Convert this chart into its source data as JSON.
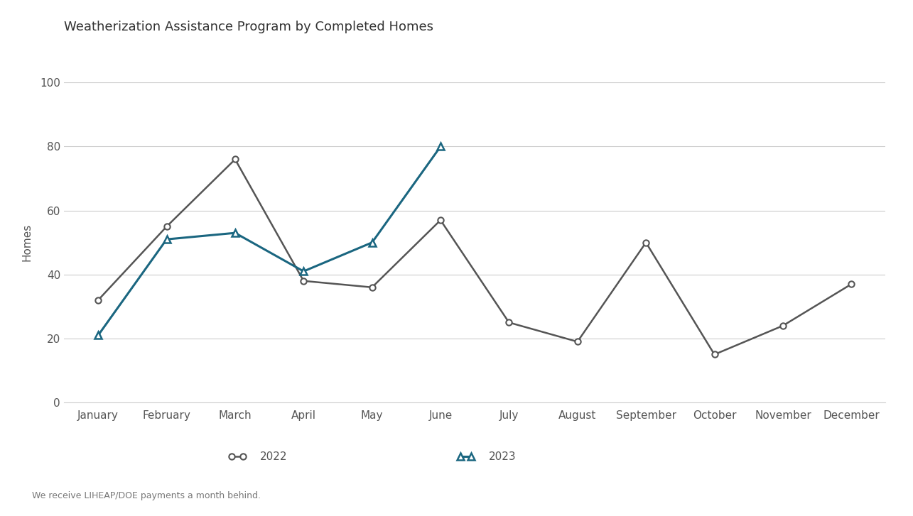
{
  "title": "Weatherization Assistance Program by Completed Homes",
  "ylabel": "Homes",
  "footnote": "We receive LIHEAP/DOE payments a month behind.",
  "months": [
    "January",
    "February",
    "March",
    "April",
    "May",
    "June",
    "July",
    "August",
    "September",
    "October",
    "November",
    "December"
  ],
  "series_2022": [
    32,
    55,
    76,
    38,
    36,
    57,
    25,
    19,
    50,
    15,
    24,
    37
  ],
  "series_2023": [
    21,
    51,
    53,
    41,
    50,
    80,
    null,
    null,
    null,
    null,
    null,
    null
  ],
  "color_2022": "#555555",
  "color_2023": "#1a6680",
  "ylim": [
    0,
    100
  ],
  "yticks": [
    0,
    20,
    40,
    60,
    80,
    100
  ],
  "background_color": "#ffffff",
  "grid_color": "#cccccc",
  "title_fontsize": 13,
  "axis_fontsize": 11,
  "tick_fontsize": 11,
  "legend_fontsize": 11,
  "footnote_fontsize": 9
}
